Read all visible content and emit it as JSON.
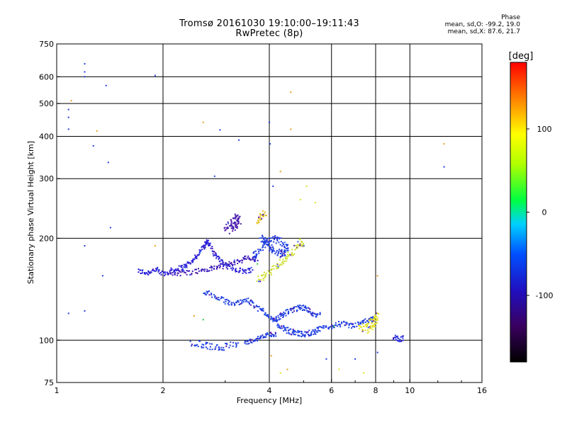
{
  "header": {
    "title_line1": "Tromsø 20161030 19:10:00–19:11:43",
    "title_line2": "RwPretec (8p)",
    "phase_heading": "Phase",
    "phase_line1": "mean, sd,O: -99.2, 19.0",
    "phase_line2": "mean, sd,X:  87.6, 21.7"
  },
  "colors": {
    "frame": "#000000",
    "grid": "#000000",
    "main_trace_blue": "#1f3de0",
    "purple": "#5a18a8",
    "yellow": "#e6e600",
    "colorbar_scale": [
      "#000000",
      "#4b0082",
      "#0000ff",
      "#00ffff",
      "#00ff00",
      "#ffff00",
      "#ff8000",
      "#ff0000"
    ]
  },
  "chart_data": {
    "type": "scatter",
    "title": "Tromsø 20161030 19:10:00–19:11:43",
    "subtitle": "RwPretec (8p)",
    "xlabel": "Frequency [MHz]",
    "ylabel": "Stationary phase Virtual Height [km]",
    "x_scale": "log",
    "y_scale": "log",
    "xlim": [
      1,
      16
    ],
    "ylim": [
      75,
      750
    ],
    "x_ticks": [
      1,
      2,
      4,
      6,
      8,
      10,
      16
    ],
    "y_ticks": [
      75,
      100,
      200,
      300,
      400,
      500,
      600,
      750
    ],
    "x_gridlines": [
      2,
      4,
      6,
      8,
      10
    ],
    "y_gridlines": [
      100,
      200,
      300,
      400,
      500,
      600
    ],
    "grid": true,
    "colorbar": {
      "label": "[deg]",
      "ticks": [
        100,
        0,
        -100
      ],
      "range": [
        -180,
        180
      ]
    },
    "series": [
      {
        "kind": "trace",
        "color": "#2a1fd8",
        "jitter": 0.015,
        "points": [
          [
            1.7,
            160
          ],
          [
            1.8,
            158
          ],
          [
            1.9,
            162
          ],
          [
            2.0,
            157
          ],
          [
            2.1,
            160
          ],
          [
            2.2,
            162
          ],
          [
            2.3,
            165
          ],
          [
            2.4,
            170
          ],
          [
            2.5,
            178
          ],
          [
            2.6,
            188
          ],
          [
            2.65,
            195
          ],
          [
            2.7,
            192
          ],
          [
            2.8,
            180
          ],
          [
            2.9,
            172
          ],
          [
            3.0,
            166
          ],
          [
            3.2,
            162
          ],
          [
            3.4,
            160
          ],
          [
            3.6,
            162
          ]
        ]
      },
      {
        "kind": "trace",
        "color": "#3a18b8",
        "jitter": 0.015,
        "points": [
          [
            2.1,
            157
          ],
          [
            2.3,
            158
          ],
          [
            2.5,
            160
          ],
          [
            2.7,
            162
          ],
          [
            2.9,
            165
          ],
          [
            3.1,
            168
          ],
          [
            3.3,
            172
          ],
          [
            3.5,
            175
          ],
          [
            3.7,
            172
          ]
        ]
      },
      {
        "kind": "trace",
        "color": "#1f3de0",
        "jitter": 0.02,
        "points": [
          [
            3.8,
            200
          ],
          [
            3.9,
            195
          ],
          [
            4.0,
            190
          ],
          [
            4.1,
            185
          ],
          [
            4.3,
            180
          ],
          [
            4.4,
            182
          ],
          [
            4.5,
            188
          ],
          [
            4.3,
            196
          ],
          [
            4.1,
            200
          ],
          [
            3.9,
            192
          ],
          [
            3.7,
            180
          ],
          [
            3.6,
            178
          ]
        ]
      },
      {
        "kind": "trace",
        "color": "#4a1fb0",
        "jitter": 0.02,
        "points": [
          [
            3.0,
            215
          ],
          [
            3.1,
            220
          ],
          [
            3.2,
            232
          ],
          [
            3.3,
            225
          ],
          [
            3.2,
            218
          ],
          [
            3.1,
            210
          ]
        ]
      },
      {
        "kind": "trace",
        "color": "#2040e0",
        "jitter": 0.015,
        "points": [
          [
            2.6,
            140
          ],
          [
            2.8,
            135
          ],
          [
            3.0,
            130
          ],
          [
            3.2,
            128
          ],
          [
            3.4,
            132
          ],
          [
            3.6,
            128
          ],
          [
            3.8,
            122
          ]
        ]
      },
      {
        "kind": "trace",
        "color": "#1f3de0",
        "jitter": 0.015,
        "points": [
          [
            3.8,
            123
          ],
          [
            4.0,
            118
          ],
          [
            4.2,
            112
          ],
          [
            4.4,
            108
          ],
          [
            4.6,
            106
          ],
          [
            4.8,
            105
          ],
          [
            5.0,
            104
          ],
          [
            5.2,
            105
          ],
          [
            5.4,
            106
          ],
          [
            5.6,
            108
          ],
          [
            6.0,
            110
          ],
          [
            6.4,
            112
          ],
          [
            6.8,
            110
          ],
          [
            7.2,
            112
          ],
          [
            7.6,
            114
          ],
          [
            8.0,
            116
          ]
        ]
      },
      {
        "kind": "trace",
        "color": "#1f3de0",
        "jitter": 0.015,
        "points": [
          [
            4.1,
            114
          ],
          [
            4.3,
            118
          ],
          [
            4.5,
            121
          ],
          [
            4.7,
            123
          ],
          [
            4.9,
            125
          ],
          [
            5.1,
            124
          ],
          [
            5.3,
            120
          ],
          [
            5.6,
            118
          ]
        ]
      },
      {
        "kind": "trace",
        "color": "#1f3de0",
        "jitter": 0.012,
        "points": [
          [
            3.4,
            98
          ],
          [
            3.6,
            100
          ],
          [
            3.8,
            102
          ],
          [
            4.0,
            104
          ],
          [
            4.2,
            104
          ]
        ]
      },
      {
        "kind": "trace",
        "color": "#1f3de0",
        "jitter": 0.02,
        "points": [
          [
            2.4,
            98
          ],
          [
            2.6,
            97
          ],
          [
            2.8,
            95
          ],
          [
            3.0,
            96
          ],
          [
            3.3,
            97
          ]
        ]
      },
      {
        "kind": "trace",
        "color": "#d0e030",
        "jitter": 0.02,
        "points": [
          [
            3.7,
            150
          ],
          [
            3.9,
            155
          ],
          [
            4.1,
            162
          ],
          [
            4.3,
            170
          ],
          [
            4.5,
            175
          ],
          [
            4.7,
            185
          ],
          [
            4.9,
            195
          ],
          [
            5.0,
            190
          ]
        ]
      },
      {
        "kind": "trace",
        "color": "#e0e020",
        "jitter": 0.02,
        "points": [
          [
            7.2,
            108
          ],
          [
            7.5,
            110
          ],
          [
            7.8,
            113
          ],
          [
            8.1,
            118
          ],
          [
            7.9,
            112
          ],
          [
            7.6,
            106
          ]
        ]
      },
      {
        "kind": "trace",
        "color": "#e6c020",
        "jitter": 0.02,
        "points": [
          [
            3.7,
            225
          ],
          [
            3.8,
            232
          ],
          [
            3.9,
            238
          ]
        ]
      },
      {
        "kind": "trace",
        "color": "#3038e0",
        "jitter": 0.015,
        "points": [
          [
            9.0,
            102
          ],
          [
            9.3,
            101
          ],
          [
            9.6,
            101
          ]
        ]
      },
      {
        "kind": "points",
        "color": "#1f3de0",
        "points": [
          [
            1.08,
            120
          ],
          [
            1.2,
            655
          ],
          [
            1.2,
            620
          ],
          [
            1.2,
            600
          ],
          [
            1.38,
            565
          ],
          [
            1.9,
            605
          ],
          [
            1.27,
            375
          ],
          [
            1.4,
            335
          ],
          [
            1.42,
            215
          ],
          [
            1.08,
            480
          ],
          [
            1.08,
            455
          ],
          [
            1.08,
            420
          ],
          [
            1.2,
            190
          ],
          [
            1.2,
            122
          ],
          [
            1.35,
            155
          ],
          [
            4.0,
            440
          ],
          [
            4.02,
            380
          ],
          [
            3.28,
            390
          ],
          [
            4.1,
            285
          ],
          [
            2.8,
            305
          ],
          [
            2.9,
            418
          ],
          [
            12.5,
            325
          ],
          [
            8.1,
            92
          ],
          [
            7.0,
            88
          ],
          [
            5.8,
            88
          ]
        ]
      },
      {
        "kind": "points",
        "color": "#e8a020",
        "points": [
          [
            1.1,
            510
          ],
          [
            1.3,
            415
          ],
          [
            2.6,
            440
          ],
          [
            4.6,
            540
          ],
          [
            4.6,
            420
          ],
          [
            12.5,
            380
          ],
          [
            4.3,
            315
          ],
          [
            1.9,
            190
          ],
          [
            2.45,
            118
          ],
          [
            4.05,
            90
          ],
          [
            4.5,
            82
          ],
          [
            8.1,
            155
          ]
        ]
      },
      {
        "kind": "points",
        "color": "#e0e020",
        "points": [
          [
            5.1,
            285
          ],
          [
            5.4,
            255
          ],
          [
            4.9,
            260
          ],
          [
            4.3,
            80
          ],
          [
            6.3,
            82
          ],
          [
            7.4,
            80
          ]
        ]
      },
      {
        "kind": "points",
        "color": "#30c040",
        "points": [
          [
            2.6,
            115
          ],
          [
            3.7,
            168
          ],
          [
            6.1,
            110
          ]
        ]
      }
    ]
  }
}
